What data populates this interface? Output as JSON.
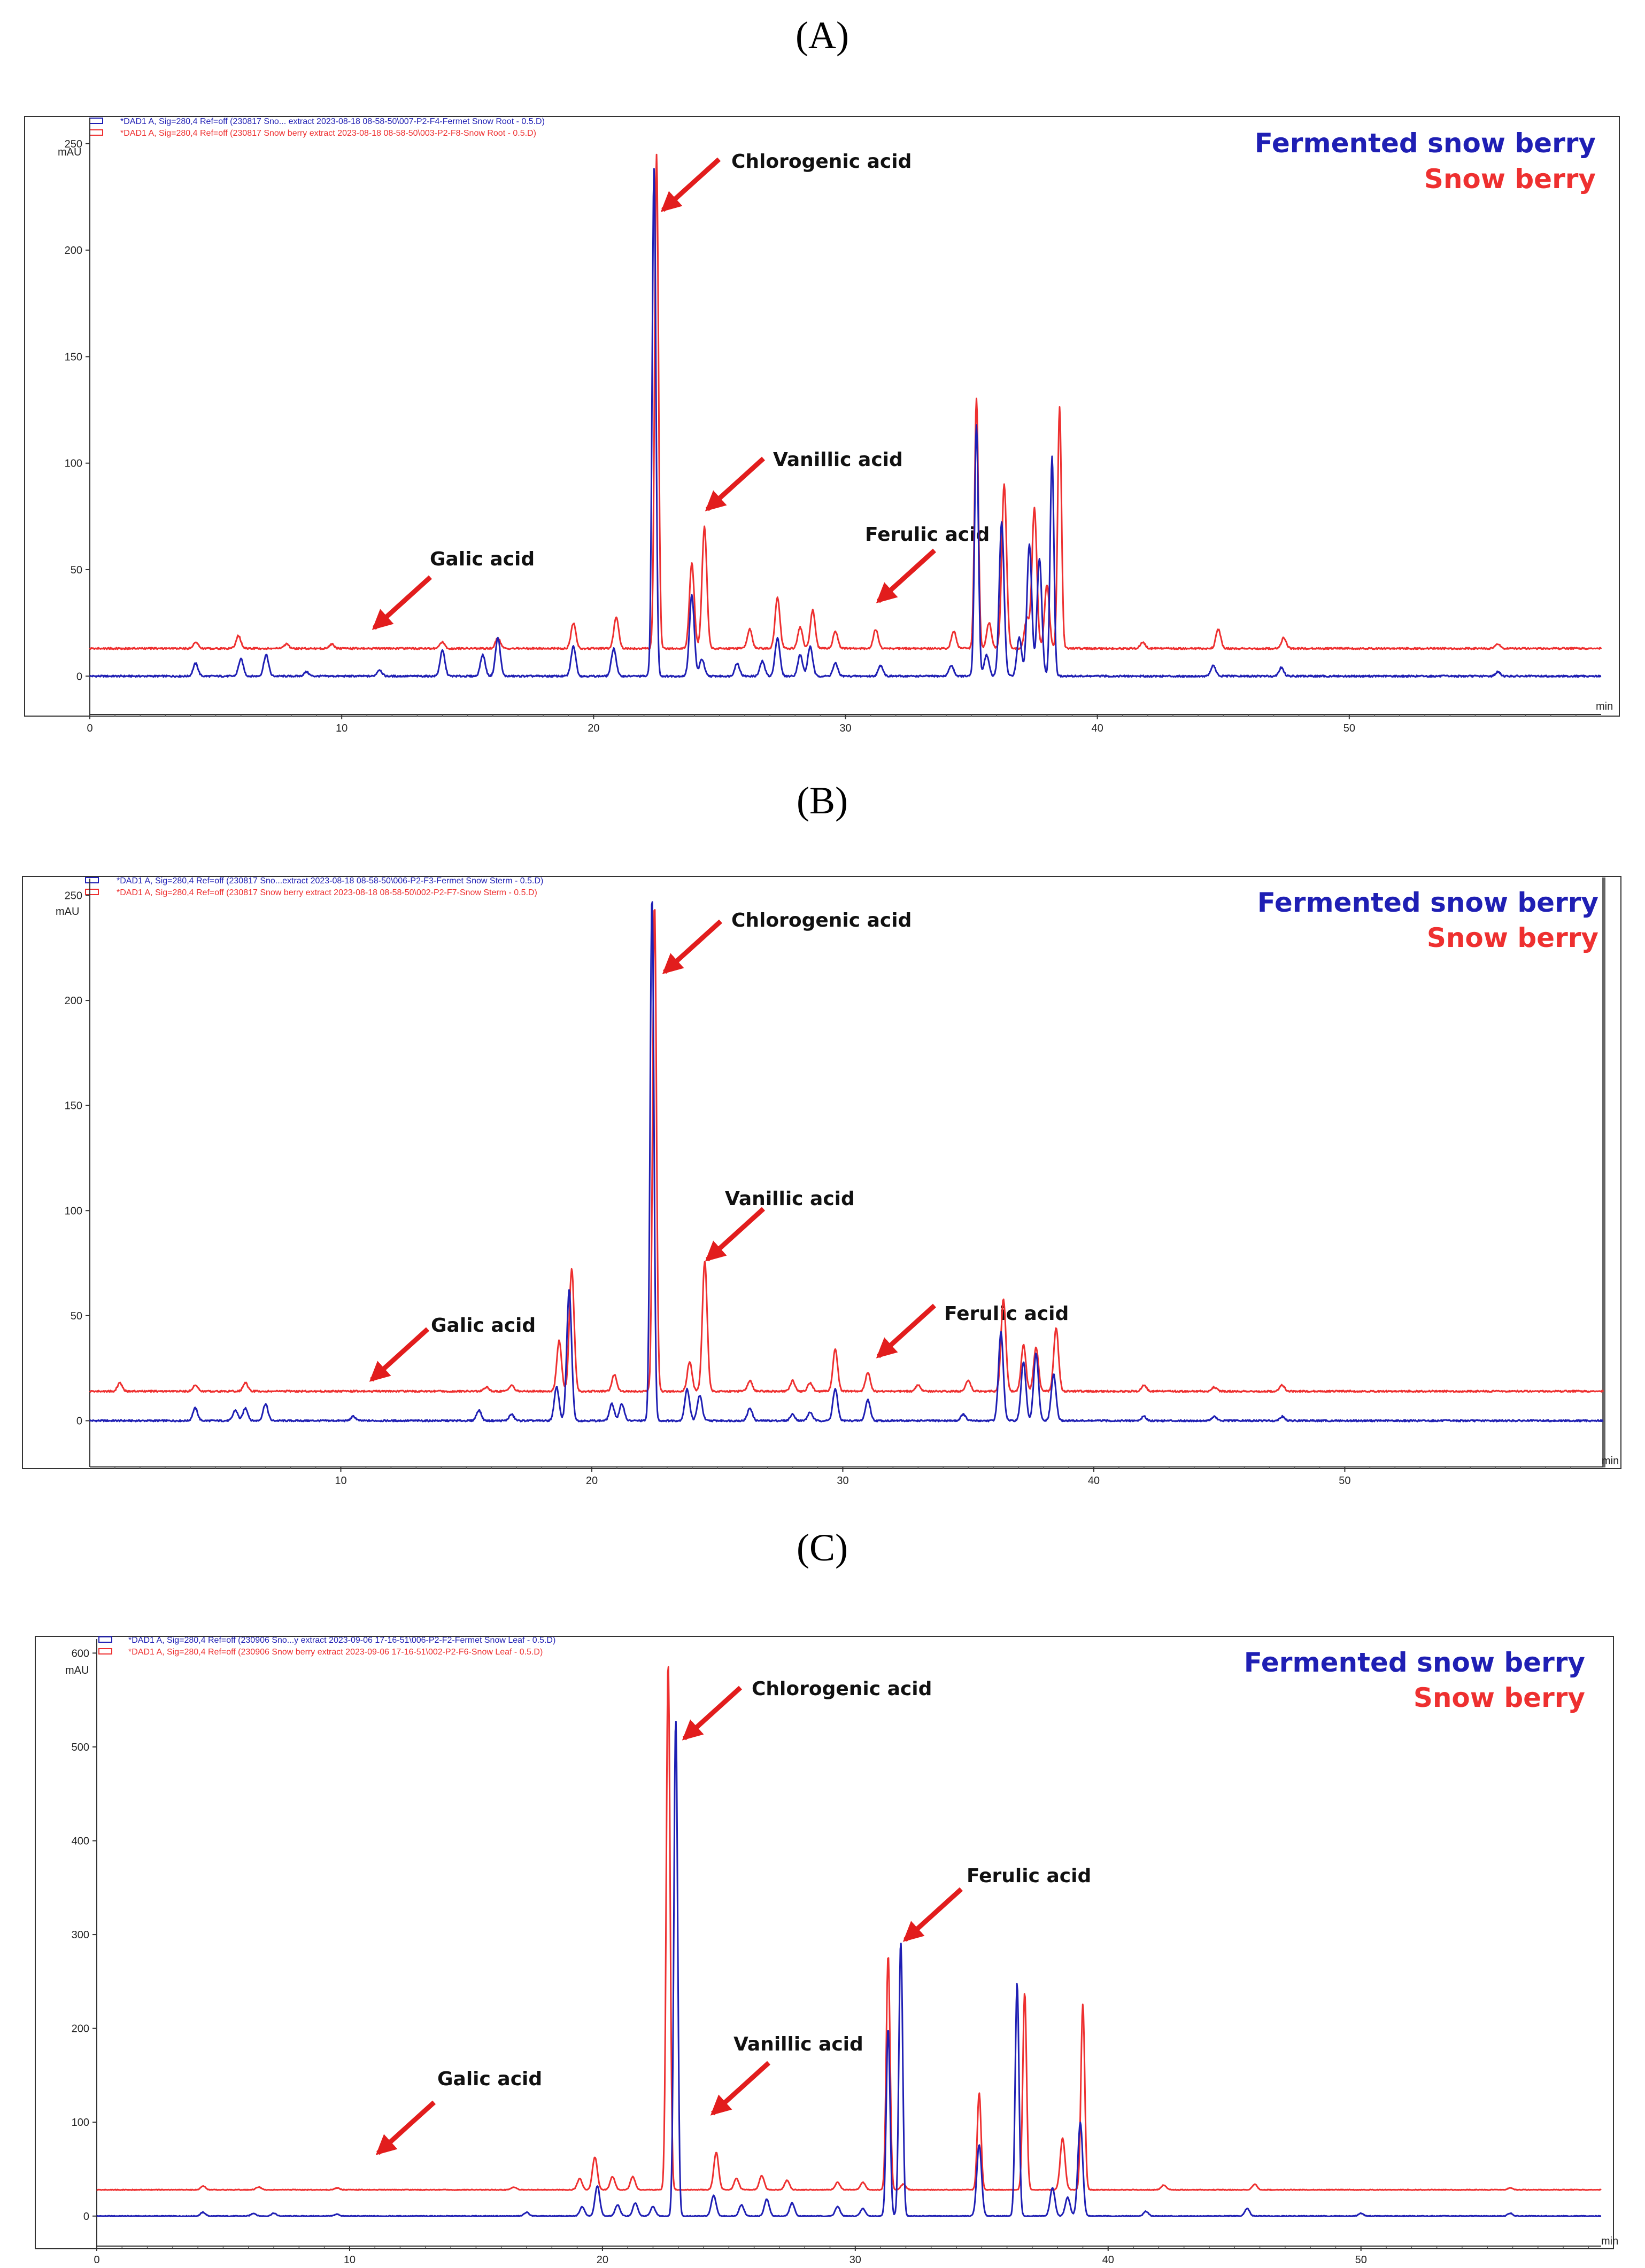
{
  "colors": {
    "fermented": "#1f1fb4",
    "snow": "#ee3030",
    "arrow": "#e21d1d"
  },
  "chart_data": [
    {
      "type": "line",
      "panel_label": "(A)",
      "sig1": "*DAD1 A, Sig=280,4 Ref=off (230817 Sno... extract 2023-08-18 08-58-50\\007-P2-F4-Fermet Snow Root - 0.5.D)",
      "sig2": "*DAD1 A, Sig=280,4 Ref=off (230817 Snow berry extract 2023-08-18 08-58-50\\003-P2-F8-Snow Root - 0.5.D)",
      "ylabel": "mAU",
      "xlabel": "min",
      "xlim": [
        0,
        60
      ],
      "ylim": [
        -18,
        262
      ],
      "yticks": [
        0,
        50,
        100,
        150,
        200,
        250
      ],
      "xticks": [
        0,
        10,
        20,
        30,
        40,
        50
      ],
      "legend": [
        "Fermented snow berry",
        "Snow berry"
      ],
      "series": [
        {
          "name": "Fermented snow berry",
          "baseline": 0,
          "peaks": [
            [
              4.2,
              6
            ],
            [
              6.0,
              8
            ],
            [
              7.0,
              10
            ],
            [
              8.6,
              2
            ],
            [
              11.5,
              3
            ],
            [
              14.0,
              12
            ],
            [
              15.6,
              10
            ],
            [
              16.2,
              18
            ],
            [
              19.2,
              14
            ],
            [
              20.8,
              13
            ],
            [
              22.4,
              238
            ],
            [
              23.9,
              38
            ],
            [
              24.3,
              8
            ],
            [
              25.7,
              6
            ],
            [
              26.7,
              7
            ],
            [
              27.3,
              18
            ],
            [
              28.2,
              10
            ],
            [
              28.6,
              14
            ],
            [
              29.6,
              6
            ],
            [
              31.4,
              5
            ],
            [
              34.2,
              5
            ],
            [
              35.2,
              118
            ],
            [
              35.6,
              10
            ],
            [
              36.2,
              72
            ],
            [
              36.9,
              18
            ],
            [
              37.3,
              62
            ],
            [
              37.7,
              55
            ],
            [
              38.2,
              103
            ],
            [
              44.6,
              5
            ],
            [
              47.3,
              4
            ],
            [
              55.9,
              2
            ]
          ]
        },
        {
          "name": "Snow berry",
          "baseline": 13,
          "peaks": [
            [
              4.2,
              3
            ],
            [
              5.9,
              6
            ],
            [
              7.8,
              2
            ],
            [
              9.6,
              2
            ],
            [
              14.0,
              3
            ],
            [
              16.2,
              5
            ],
            [
              19.2,
              12
            ],
            [
              20.9,
              15
            ],
            [
              22.5,
              232
            ],
            [
              23.9,
              40
            ],
            [
              24.4,
              57
            ],
            [
              26.2,
              9
            ],
            [
              27.3,
              24
            ],
            [
              28.2,
              10
            ],
            [
              28.7,
              18
            ],
            [
              29.6,
              8
            ],
            [
              31.2,
              9
            ],
            [
              34.3,
              8
            ],
            [
              35.2,
              117
            ],
            [
              35.7,
              12
            ],
            [
              36.3,
              77
            ],
            [
              37.2,
              14
            ],
            [
              37.5,
              66
            ],
            [
              38.0,
              30
            ],
            [
              38.5,
              113
            ],
            [
              41.8,
              3
            ],
            [
              44.8,
              9
            ],
            [
              47.4,
              5
            ],
            [
              55.9,
              2
            ]
          ]
        }
      ],
      "annotations": [
        {
          "text": "Chlorogenic acid",
          "x": 22.8,
          "y": 240
        },
        {
          "text": "Vanillic acid",
          "x": 24.8,
          "y": 78
        },
        {
          "text": "Galic acid",
          "x": 11.5,
          "y": 20
        },
        {
          "text": "Ferulic acid",
          "x": 31.0,
          "y": 33
        }
      ]
    },
    {
      "type": "line",
      "panel_label": "(B)",
      "sig1": "*DAD1 A, Sig=280,4 Ref=off (230817 Sno...extract 2023-08-18 08-58-50\\006-P2-F3-Fermet Snow Sterm - 0.5.D)",
      "sig2": "*DAD1 A, Sig=280,4 Ref=off (230817 Snow berry extract 2023-08-18 08-58-50\\002-P2-F7-Snow Sterm - 0.5.D)",
      "ylabel": "mAU",
      "xlabel": "min",
      "xlim": [
        0,
        60.3
      ],
      "ylim": [
        -22,
        258
      ],
      "yticks": [
        0,
        50,
        100,
        150,
        200,
        250
      ],
      "xticks": [
        10,
        20,
        30,
        40,
        50
      ],
      "legend": [
        "Fermented snow berry",
        "Snow berry"
      ],
      "series": [
        {
          "name": "Fermented snow berry",
          "baseline": 0,
          "peaks": [
            [
              4.2,
              6
            ],
            [
              5.8,
              5
            ],
            [
              6.2,
              6
            ],
            [
              7.0,
              8
            ],
            [
              10.5,
              2
            ],
            [
              15.5,
              5
            ],
            [
              16.8,
              3
            ],
            [
              18.6,
              16
            ],
            [
              19.1,
              62
            ],
            [
              20.8,
              8
            ],
            [
              21.2,
              8
            ],
            [
              22.4,
              250
            ],
            [
              23.8,
              15
            ],
            [
              24.3,
              12
            ],
            [
              26.3,
              6
            ],
            [
              28.0,
              3
            ],
            [
              28.7,
              4
            ],
            [
              29.7,
              15
            ],
            [
              31.0,
              10
            ],
            [
              34.8,
              3
            ],
            [
              36.3,
              42
            ],
            [
              37.2,
              28
            ],
            [
              37.7,
              32
            ],
            [
              38.4,
              22
            ],
            [
              42.0,
              2
            ],
            [
              44.8,
              2
            ],
            [
              47.5,
              2
            ]
          ]
        },
        {
          "name": "Snow berry",
          "baseline": 14,
          "peaks": [
            [
              1.2,
              4
            ],
            [
              4.2,
              3
            ],
            [
              6.2,
              4
            ],
            [
              15.8,
              2
            ],
            [
              16.8,
              3
            ],
            [
              18.7,
              24
            ],
            [
              19.2,
              58
            ],
            [
              20.9,
              8
            ],
            [
              22.5,
              232
            ],
            [
              23.9,
              14
            ],
            [
              24.5,
              62
            ],
            [
              26.3,
              5
            ],
            [
              28.0,
              5
            ],
            [
              28.7,
              4
            ],
            [
              29.7,
              20
            ],
            [
              31.0,
              9
            ],
            [
              33.0,
              3
            ],
            [
              35.0,
              5
            ],
            [
              36.4,
              44
            ],
            [
              37.2,
              22
            ],
            [
              37.7,
              21
            ],
            [
              38.5,
              30
            ],
            [
              42.0,
              3
            ],
            [
              44.8,
              2
            ],
            [
              47.5,
              3
            ]
          ]
        }
      ],
      "annotations": [
        {
          "text": "Chlorogenic acid",
          "x": 22.8,
          "y": 250
        },
        {
          "text": "Vanillic acid",
          "x": 24.5,
          "y": 80
        },
        {
          "text": "Galic acid",
          "x": 11.2,
          "y": 16
        },
        {
          "text": "Ferulic acid",
          "x": 31.0,
          "y": 34
        }
      ]
    },
    {
      "type": "line",
      "panel_label": "(C)",
      "sig1": "*DAD1 A, Sig=280,4 Ref=off (230906 Sno...y extract 2023-09-06 17-16-51\\006-P2-F2-Fermet Snow Leaf - 0.5.D)",
      "sig2": "*DAD1 A, Sig=280,4 Ref=off (230906 Snow berry extract 2023-09-06 17-16-51\\002-P2-F6-Snow Leaf - 0.5.D)",
      "ylabel": "mAU",
      "xlabel": "min",
      "xlim": [
        0,
        59.5
      ],
      "ylim": [
        -32,
        615
      ],
      "yticks": [
        0,
        100,
        200,
        300,
        400,
        500,
        600
      ],
      "xticks": [
        0,
        10,
        20,
        30,
        40,
        50
      ],
      "legend": [
        "Fermented snow berry",
        "Snow berry"
      ],
      "series": [
        {
          "name": "Fermented snow berry",
          "baseline": 0,
          "peaks": [
            [
              4.2,
              4
            ],
            [
              6.2,
              3
            ],
            [
              7.0,
              3
            ],
            [
              9.5,
              2
            ],
            [
              17.0,
              4
            ],
            [
              19.2,
              10
            ],
            [
              19.8,
              32
            ],
            [
              20.6,
              12
            ],
            [
              21.3,
              14
            ],
            [
              22.0,
              10
            ],
            [
              22.9,
              530
            ],
            [
              24.4,
              22
            ],
            [
              25.5,
              12
            ],
            [
              26.5,
              18
            ],
            [
              27.5,
              14
            ],
            [
              29.3,
              10
            ],
            [
              30.3,
              8
            ],
            [
              31.3,
              200
            ],
            [
              31.8,
              292
            ],
            [
              34.9,
              76
            ],
            [
              36.4,
              248
            ],
            [
              37.8,
              30
            ],
            [
              38.4,
              20
            ],
            [
              38.9,
              100
            ],
            [
              41.5,
              5
            ],
            [
              45.5,
              8
            ],
            [
              50.0,
              3
            ],
            [
              55.9,
              3
            ]
          ]
        },
        {
          "name": "Snow berry",
          "baseline": 28,
          "peaks": [
            [
              4.2,
              4
            ],
            [
              6.4,
              3
            ],
            [
              9.5,
              2
            ],
            [
              16.5,
              3
            ],
            [
              19.1,
              12
            ],
            [
              19.7,
              35
            ],
            [
              20.4,
              14
            ],
            [
              21.2,
              14
            ],
            [
              22.6,
              562
            ],
            [
              24.5,
              40
            ],
            [
              25.3,
              12
            ],
            [
              26.3,
              15
            ],
            [
              27.3,
              10
            ],
            [
              29.3,
              8
            ],
            [
              30.3,
              8
            ],
            [
              31.3,
              250
            ],
            [
              31.9,
              6
            ],
            [
              34.9,
              103
            ],
            [
              36.7,
              210
            ],
            [
              38.2,
              55
            ],
            [
              39.0,
              198
            ],
            [
              42.2,
              5
            ],
            [
              45.8,
              6
            ],
            [
              55.9,
              2
            ]
          ]
        }
      ],
      "annotations": [
        {
          "text": "Chlorogenic acid",
          "x": 23.1,
          "y": 545
        },
        {
          "text": "Vanillic acid",
          "x": 24.5,
          "y": 80
        },
        {
          "text": "Galic acid",
          "x": 11.5,
          "y": 45
        },
        {
          "text": "Ferulic acid",
          "x": 31.9,
          "y": 310
        }
      ]
    }
  ]
}
